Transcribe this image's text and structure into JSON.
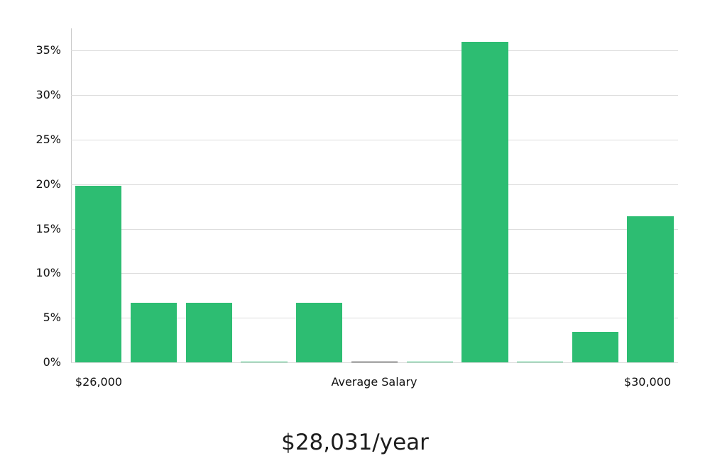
{
  "chart_data": {
    "type": "bar",
    "title": "$28,031/year",
    "x_axis_labels": [
      "$26,000",
      "Average Salary",
      "$30,000"
    ],
    "xlabel": "Average Salary",
    "ylabel": "",
    "yticks": [
      0,
      5,
      10,
      15,
      20,
      25,
      30,
      35
    ],
    "ytick_labels": [
      "0%",
      "5%",
      "10%",
      "15%",
      "20%",
      "25%",
      "30%",
      "35%"
    ],
    "ylim": [
      0,
      37.5
    ],
    "grid": true,
    "legend": false,
    "values": [
      19.8,
      6.7,
      6.7,
      0.1,
      6.7,
      0.1,
      0.1,
      36.0,
      0.1,
      3.4,
      16.4
    ],
    "colors": [
      "#2dbd72",
      "#2dbd72",
      "#2dbd72",
      "#2dbd72",
      "#2dbd72",
      "#1a1a1a",
      "#2dbd72",
      "#2dbd72",
      "#2dbd72",
      "#2dbd72",
      "#2dbd72"
    ],
    "bar_color": "#2dbd72",
    "highlight_bar_color": "#1a1a1a",
    "grid_color": "#dcdcdc"
  }
}
